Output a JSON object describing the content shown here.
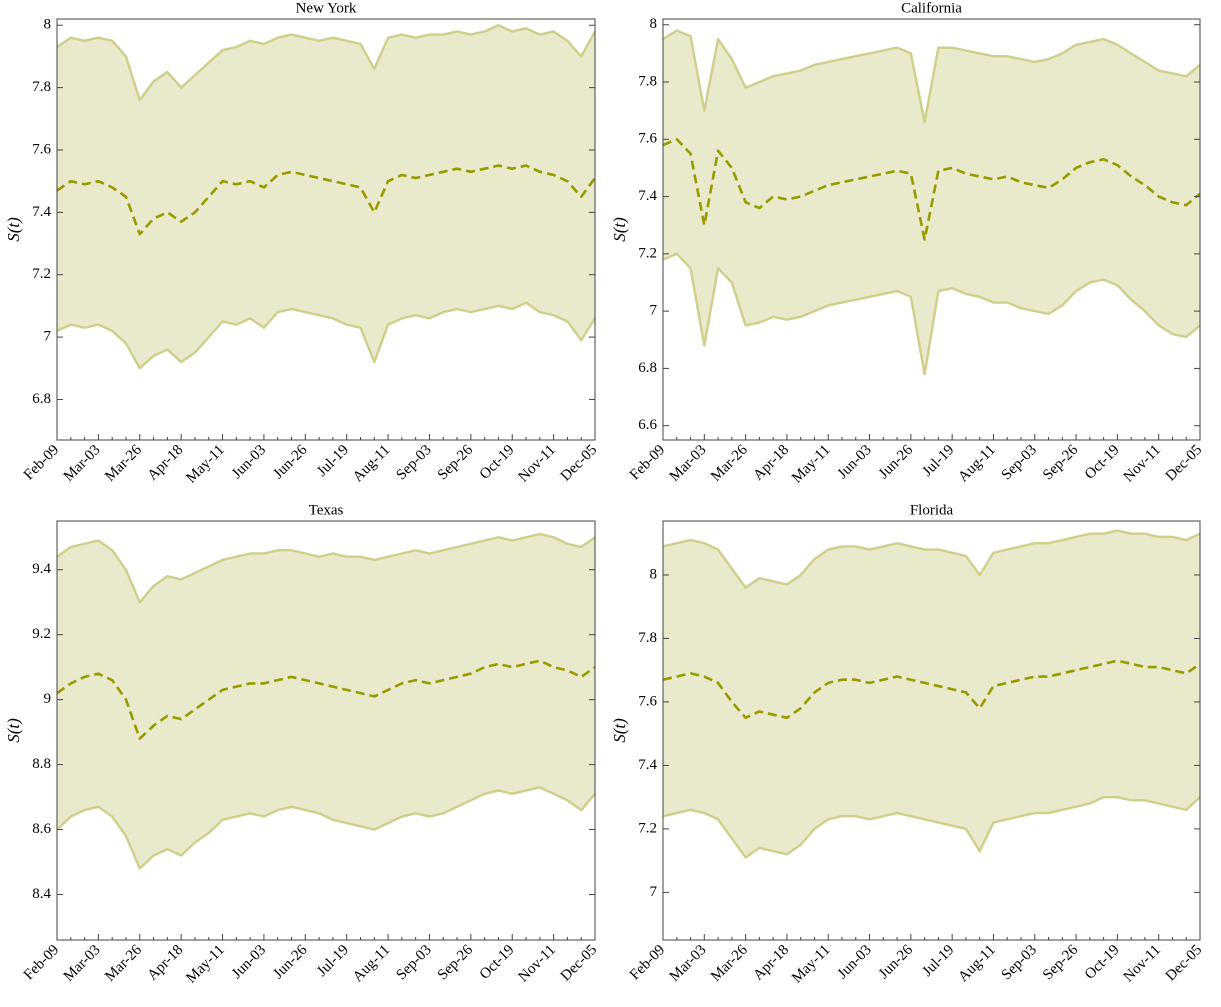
{
  "chart_data": [
    {
      "type": "line",
      "title": "New York",
      "y_label": "S(t)",
      "categories": [
        "Feb-09",
        null,
        null,
        "Mar-03",
        null,
        null,
        "Mar-26",
        null,
        null,
        "Apr-18",
        null,
        null,
        "May-11",
        null,
        null,
        "Jun-03",
        null,
        null,
        "Jun-26",
        null,
        null,
        "Jul-19",
        null,
        null,
        "Aug-11",
        null,
        null,
        "Sep-03",
        null,
        null,
        "Sep-26",
        null,
        null,
        "Oct-19",
        null,
        null,
        "Nov-11",
        null,
        null,
        "Dec-05"
      ],
      "ylim": [
        6.67,
        8.02
      ],
      "yticks": [
        6.8,
        7,
        7.2,
        7.4,
        7.6,
        7.8,
        8
      ],
      "fill_color": "#e9e9cb",
      "series": [
        {
          "color": "#cfcf8a",
          "values": [
            7.02,
            7.04,
            7.03,
            7.04,
            7.02,
            6.98,
            6.9,
            6.94,
            6.96,
            6.92,
            6.95,
            7.0,
            7.05,
            7.04,
            7.06,
            7.03,
            7.08,
            7.09,
            7.08,
            7.07,
            7.06,
            7.04,
            7.03,
            6.92,
            7.04,
            7.06,
            7.07,
            7.06,
            7.08,
            7.09,
            7.08,
            7.09,
            7.1,
            7.09,
            7.11,
            7.08,
            7.07,
            7.05,
            6.99,
            7.06
          ]
        },
        {
          "color": "#999900",
          "dashed": true,
          "values": [
            7.47,
            7.5,
            7.49,
            7.5,
            7.48,
            7.45,
            7.33,
            7.38,
            7.4,
            7.37,
            7.4,
            7.45,
            7.5,
            7.49,
            7.5,
            7.48,
            7.52,
            7.53,
            7.52,
            7.51,
            7.5,
            7.49,
            7.48,
            7.4,
            7.5,
            7.52,
            7.51,
            7.52,
            7.53,
            7.54,
            7.53,
            7.54,
            7.55,
            7.54,
            7.55,
            7.53,
            7.52,
            7.5,
            7.45,
            7.51
          ]
        },
        {
          "color": "#cfcf8a",
          "values": [
            7.93,
            7.96,
            7.95,
            7.96,
            7.95,
            7.9,
            7.76,
            7.82,
            7.85,
            7.8,
            7.84,
            7.88,
            7.92,
            7.93,
            7.95,
            7.94,
            7.96,
            7.97,
            7.96,
            7.95,
            7.96,
            7.95,
            7.94,
            7.86,
            7.96,
            7.97,
            7.96,
            7.97,
            7.97,
            7.98,
            7.97,
            7.98,
            8.0,
            7.98,
            7.99,
            7.97,
            7.98,
            7.95,
            7.9,
            7.98
          ]
        }
      ]
    },
    {
      "type": "line",
      "title": "California",
      "y_label": "S(t)",
      "categories": [
        "Feb-09",
        null,
        null,
        "Mar-03",
        null,
        null,
        "Mar-26",
        null,
        null,
        "Apr-18",
        null,
        null,
        "May-11",
        null,
        null,
        "Jun-03",
        null,
        null,
        "Jun-26",
        null,
        null,
        "Jul-19",
        null,
        null,
        "Aug-11",
        null,
        null,
        "Sep-03",
        null,
        null,
        "Sep-26",
        null,
        null,
        "Oct-19",
        null,
        null,
        "Nov-11",
        null,
        null,
        "Dec-05"
      ],
      "ylim": [
        6.55,
        8.02
      ],
      "yticks": [
        6.6,
        6.8,
        7,
        7.2,
        7.4,
        7.6,
        7.8,
        8
      ],
      "fill_color": "#e9e9cb",
      "series": [
        {
          "color": "#cfcf8a",
          "values": [
            7.18,
            7.2,
            7.15,
            6.88,
            7.15,
            7.1,
            6.95,
            6.96,
            6.98,
            6.97,
            6.98,
            7.0,
            7.02,
            7.03,
            7.04,
            7.05,
            7.06,
            7.07,
            7.05,
            6.78,
            7.07,
            7.08,
            7.06,
            7.05,
            7.03,
            7.03,
            7.01,
            7.0,
            6.99,
            7.02,
            7.07,
            7.1,
            7.11,
            7.09,
            7.04,
            7.0,
            6.95,
            6.92,
            6.91,
            6.95
          ]
        },
        {
          "color": "#999900",
          "dashed": true,
          "values": [
            7.58,
            7.6,
            7.55,
            7.3,
            7.56,
            7.5,
            7.38,
            7.36,
            7.4,
            7.39,
            7.4,
            7.42,
            7.44,
            7.45,
            7.46,
            7.47,
            7.48,
            7.49,
            7.48,
            7.25,
            7.49,
            7.5,
            7.48,
            7.47,
            7.46,
            7.47,
            7.45,
            7.44,
            7.43,
            7.46,
            7.5,
            7.52,
            7.53,
            7.51,
            7.47,
            7.44,
            7.4,
            7.38,
            7.37,
            7.41
          ]
        },
        {
          "color": "#cfcf8a",
          "values": [
            7.95,
            7.98,
            7.96,
            7.7,
            7.95,
            7.88,
            7.78,
            7.8,
            7.82,
            7.83,
            7.84,
            7.86,
            7.87,
            7.88,
            7.89,
            7.9,
            7.91,
            7.92,
            7.9,
            7.66,
            7.92,
            7.92,
            7.91,
            7.9,
            7.89,
            7.89,
            7.88,
            7.87,
            7.88,
            7.9,
            7.93,
            7.94,
            7.95,
            7.93,
            7.9,
            7.87,
            7.84,
            7.83,
            7.82,
            7.86
          ]
        }
      ]
    },
    {
      "type": "line",
      "title": "Texas",
      "y_label": "S(t)",
      "categories": [
        "Feb-09",
        null,
        null,
        "Mar-03",
        null,
        null,
        "Mar-26",
        null,
        null,
        "Apr-18",
        null,
        null,
        "May-11",
        null,
        null,
        "Jun-03",
        null,
        null,
        "Jun-26",
        null,
        null,
        "Jul-19",
        null,
        null,
        "Aug-11",
        null,
        null,
        "Sep-03",
        null,
        null,
        "Sep-26",
        null,
        null,
        "Oct-19",
        null,
        null,
        "Nov-11",
        null,
        null,
        "Dec-05"
      ],
      "ylim": [
        8.26,
        9.55
      ],
      "yticks": [
        8.4,
        8.6,
        8.8,
        9,
        9.2,
        9.4
      ],
      "fill_color": "#e9e9cb",
      "series": [
        {
          "color": "#cfcf8a",
          "values": [
            8.6,
            8.64,
            8.66,
            8.67,
            8.64,
            8.58,
            8.48,
            8.52,
            8.54,
            8.52,
            8.56,
            8.59,
            8.63,
            8.64,
            8.65,
            8.64,
            8.66,
            8.67,
            8.66,
            8.65,
            8.63,
            8.62,
            8.61,
            8.6,
            8.62,
            8.64,
            8.65,
            8.64,
            8.65,
            8.67,
            8.69,
            8.71,
            8.72,
            8.71,
            8.72,
            8.73,
            8.71,
            8.69,
            8.66,
            8.71
          ]
        },
        {
          "color": "#999900",
          "dashed": true,
          "values": [
            9.02,
            9.05,
            9.07,
            9.08,
            9.06,
            9.0,
            8.88,
            8.92,
            8.95,
            8.94,
            8.97,
            9.0,
            9.03,
            9.04,
            9.05,
            9.05,
            9.06,
            9.07,
            9.06,
            9.05,
            9.04,
            9.03,
            9.02,
            9.01,
            9.03,
            9.05,
            9.06,
            9.05,
            9.06,
            9.07,
            9.08,
            9.1,
            9.11,
            9.1,
            9.11,
            9.12,
            9.1,
            9.09,
            9.07,
            9.1
          ]
        },
        {
          "color": "#cfcf8a",
          "values": [
            9.44,
            9.47,
            9.48,
            9.49,
            9.46,
            9.4,
            9.3,
            9.35,
            9.38,
            9.37,
            9.39,
            9.41,
            9.43,
            9.44,
            9.45,
            9.45,
            9.46,
            9.46,
            9.45,
            9.44,
            9.45,
            9.44,
            9.44,
            9.43,
            9.44,
            9.45,
            9.46,
            9.45,
            9.46,
            9.47,
            9.48,
            9.49,
            9.5,
            9.49,
            9.5,
            9.51,
            9.5,
            9.48,
            9.47,
            9.5
          ]
        }
      ]
    },
    {
      "type": "line",
      "title": "Florida",
      "y_label": "S(t)",
      "categories": [
        "Feb-09",
        null,
        null,
        "Mar-03",
        null,
        null,
        "Mar-26",
        null,
        null,
        "Apr-18",
        null,
        null,
        "May-11",
        null,
        null,
        "Jun-03",
        null,
        null,
        "Jun-26",
        null,
        null,
        "Jul-19",
        null,
        null,
        "Aug-11",
        null,
        null,
        "Sep-03",
        null,
        null,
        "Sep-26",
        null,
        null,
        "Oct-19",
        null,
        null,
        "Nov-11",
        null,
        null,
        "Dec-05"
      ],
      "ylim": [
        6.85,
        8.17
      ],
      "yticks": [
        7,
        7.2,
        7.4,
        7.6,
        7.8,
        8
      ],
      "fill_color": "#e9e9cb",
      "series": [
        {
          "color": "#cfcf8a",
          "values": [
            7.24,
            7.25,
            7.26,
            7.25,
            7.23,
            7.17,
            7.11,
            7.14,
            7.13,
            7.12,
            7.15,
            7.2,
            7.23,
            7.24,
            7.24,
            7.23,
            7.24,
            7.25,
            7.24,
            7.23,
            7.22,
            7.21,
            7.2,
            7.13,
            7.22,
            7.23,
            7.24,
            7.25,
            7.25,
            7.26,
            7.27,
            7.28,
            7.3,
            7.3,
            7.29,
            7.29,
            7.28,
            7.27,
            7.26,
            7.3
          ]
        },
        {
          "color": "#999900",
          "dashed": true,
          "values": [
            7.67,
            7.68,
            7.69,
            7.68,
            7.66,
            7.6,
            7.55,
            7.57,
            7.56,
            7.55,
            7.58,
            7.63,
            7.66,
            7.67,
            7.67,
            7.66,
            7.67,
            7.68,
            7.67,
            7.66,
            7.65,
            7.64,
            7.63,
            7.58,
            7.65,
            7.66,
            7.67,
            7.68,
            7.68,
            7.69,
            7.7,
            7.71,
            7.72,
            7.73,
            7.72,
            7.71,
            7.71,
            7.7,
            7.69,
            7.72
          ]
        },
        {
          "color": "#cfcf8a",
          "values": [
            8.09,
            8.1,
            8.11,
            8.1,
            8.08,
            8.02,
            7.96,
            7.99,
            7.98,
            7.97,
            8.0,
            8.05,
            8.08,
            8.09,
            8.09,
            8.08,
            8.09,
            8.1,
            8.09,
            8.08,
            8.08,
            8.07,
            8.06,
            8.0,
            8.07,
            8.08,
            8.09,
            8.1,
            8.1,
            8.11,
            8.12,
            8.13,
            8.13,
            8.14,
            8.13,
            8.13,
            8.12,
            8.12,
            8.11,
            8.13
          ]
        }
      ]
    }
  ]
}
